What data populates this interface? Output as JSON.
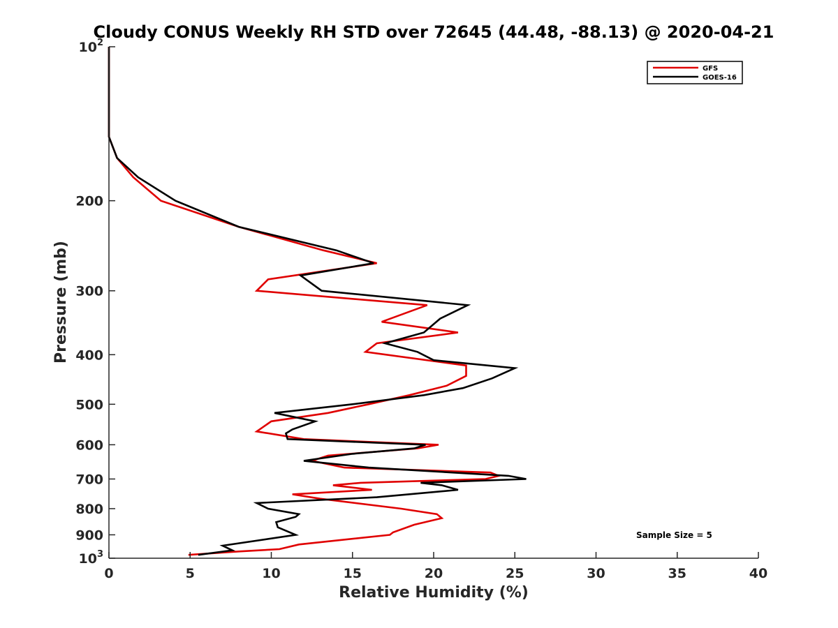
{
  "chart_data": {
    "type": "line",
    "title": "Cloudy CONUS Weekly RH STD over 72645 (44.48, -88.13) @ 2020-04-21",
    "xlabel": "Relative Humidity (%)",
    "ylabel": "Pressure (mb)",
    "xlim": [
      0,
      40
    ],
    "ylim": [
      100,
      1000
    ],
    "y_scale": "log",
    "y_reversed": true,
    "x_ticks": [
      "0",
      "5",
      "10",
      "15",
      "20",
      "25",
      "30",
      "35",
      "40"
    ],
    "y_ticks": [
      {
        "value": 100,
        "base": "10",
        "exp": "2"
      },
      {
        "value": 200,
        "label": "200"
      },
      {
        "value": 300,
        "label": "300"
      },
      {
        "value": 400,
        "label": "400"
      },
      {
        "value": 500,
        "label": "500"
      },
      {
        "value": 600,
        "label": "600"
      },
      {
        "value": 700,
        "label": "700"
      },
      {
        "value": 800,
        "label": "800"
      },
      {
        "value": 900,
        "label": "900"
      },
      {
        "value": 1000,
        "base": "10",
        "exp": "3"
      }
    ],
    "legend_position": "top-right",
    "annotation": "Sample Size = 5",
    "series": [
      {
        "name": "GFS",
        "color": "#e00000",
        "points": [
          [
            0,
            100
          ],
          [
            0,
            125
          ],
          [
            0,
            150
          ],
          [
            0.5,
            165
          ],
          [
            1.5,
            180
          ],
          [
            3.2,
            200
          ],
          [
            8,
            225
          ],
          [
            13.2,
            250
          ],
          [
            16.5,
            265
          ],
          [
            9.8,
            285
          ],
          [
            9.1,
            300
          ],
          [
            19.6,
            320
          ],
          [
            16.8,
            345
          ],
          [
            21.5,
            362
          ],
          [
            16.5,
            380
          ],
          [
            15.8,
            395
          ],
          [
            22,
            420
          ],
          [
            22,
            440
          ],
          [
            20.8,
            460
          ],
          [
            18.5,
            480
          ],
          [
            16,
            500
          ],
          [
            13.5,
            520
          ],
          [
            10,
            540
          ],
          [
            9.1,
            565
          ],
          [
            12,
            585
          ],
          [
            20.3,
            600
          ],
          [
            19,
            610
          ],
          [
            13.5,
            630
          ],
          [
            12.5,
            645
          ],
          [
            14.5,
            665
          ],
          [
            23.5,
            680
          ],
          [
            24,
            690
          ],
          [
            23.2,
            700
          ],
          [
            15.5,
            712
          ],
          [
            13.8,
            720
          ],
          [
            16.2,
            735
          ],
          [
            11.3,
            750
          ],
          [
            13,
            765
          ],
          [
            18,
            800
          ],
          [
            20.2,
            820
          ],
          [
            20.5,
            835
          ],
          [
            18.8,
            860
          ],
          [
            17.5,
            890
          ],
          [
            17.3,
            900
          ],
          [
            11.7,
            940
          ],
          [
            10.5,
            960
          ],
          [
            8,
            970
          ],
          [
            4.9,
            985
          ]
        ]
      },
      {
        "name": "GOES-16",
        "color": "#000000",
        "points": [
          [
            0,
            100
          ],
          [
            0,
            125
          ],
          [
            0,
            150
          ],
          [
            0.5,
            165
          ],
          [
            1.8,
            180
          ],
          [
            4.1,
            200
          ],
          [
            8,
            225
          ],
          [
            14,
            250
          ],
          [
            16.3,
            265
          ],
          [
            11.8,
            280
          ],
          [
            13.1,
            300
          ],
          [
            22.1,
            320
          ],
          [
            20.4,
            340
          ],
          [
            19.4,
            362
          ],
          [
            17,
            380
          ],
          [
            19,
            395
          ],
          [
            20,
            410
          ],
          [
            25,
            425
          ],
          [
            23.6,
            445
          ],
          [
            21.8,
            465
          ],
          [
            19.4,
            480
          ],
          [
            15,
            500
          ],
          [
            10.2,
            520
          ],
          [
            12.7,
            540
          ],
          [
            11.3,
            560
          ],
          [
            10.9,
            570
          ],
          [
            11,
            585
          ],
          [
            19.5,
            600
          ],
          [
            18.8,
            610
          ],
          [
            15,
            625
          ],
          [
            12,
            645
          ],
          [
            16,
            665
          ],
          [
            24.6,
            690
          ],
          [
            25.7,
            700
          ],
          [
            19.2,
            712
          ],
          [
            20.5,
            720
          ],
          [
            21.5,
            735
          ],
          [
            16.5,
            760
          ],
          [
            9.1,
            780
          ],
          [
            9.8,
            800
          ],
          [
            11.7,
            820
          ],
          [
            11.5,
            830
          ],
          [
            10.3,
            850
          ],
          [
            10.4,
            870
          ],
          [
            11.5,
            900
          ],
          [
            7,
            945
          ],
          [
            7.6,
            965
          ],
          [
            5.5,
            985
          ]
        ]
      }
    ]
  }
}
